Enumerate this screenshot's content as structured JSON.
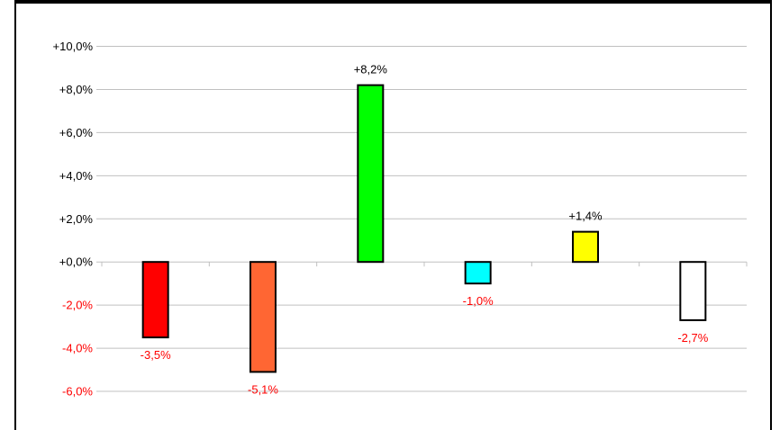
{
  "chart_data": {
    "type": "bar",
    "categories": [
      "",
      "",
      "",
      "",
      "",
      ""
    ],
    "values": [
      -3.5,
      -5.1,
      8.2,
      -1.0,
      1.4,
      -2.7
    ],
    "data_labels": [
      "-3,5%",
      "-5,1%",
      "+8,2%",
      "-1,0%",
      "+1,4%",
      "-2,7%"
    ],
    "bar_colors": [
      "#ff0000",
      "#ff6633",
      "#00ff00",
      "#00ffff",
      "#ffff00",
      "#ffffff"
    ],
    "ylim": [
      -6,
      10
    ],
    "yticks": [
      10,
      8,
      6,
      4,
      2,
      0,
      -2,
      -4,
      -6
    ],
    "ytick_labels": [
      "+10,0%",
      "+8,0%",
      "+6,0%",
      "+4,0%",
      "+2,0%",
      "+0,0%",
      "-2,0%",
      "-4,0%",
      "-6,0%"
    ],
    "grid": true,
    "colors": {
      "positive_label": "#000000",
      "negative_label": "#ff0000",
      "grid": "#c0c0c0",
      "bar_outline": "#000000"
    }
  }
}
